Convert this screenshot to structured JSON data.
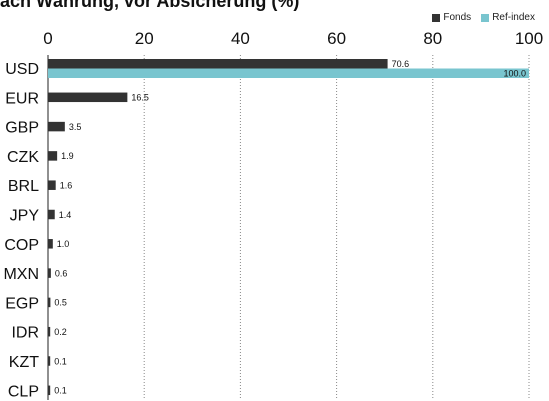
{
  "chart_data": {
    "type": "bar",
    "orientation": "horizontal",
    "title": "ach Währung, vor Absicherung (%)",
    "categories": [
      "USD",
      "EUR",
      "GBP",
      "CZK",
      "BRL",
      "JPY",
      "COP",
      "MXN",
      "EGP",
      "IDR",
      "KZT",
      "CLP"
    ],
    "series": [
      {
        "name": "Fonds",
        "color": "#333333",
        "values": [
          70.6,
          16.5,
          3.5,
          1.9,
          1.6,
          1.4,
          1.0,
          0.6,
          0.5,
          0.2,
          0.1,
          0.1
        ]
      },
      {
        "name": "Ref-index",
        "color": "#79c5cf",
        "values": [
          100.0,
          null,
          null,
          null,
          null,
          null,
          null,
          null,
          null,
          null,
          null,
          null
        ]
      }
    ],
    "value_axis": {
      "ticks": [
        "0",
        "20",
        "40",
        "60",
        "80",
        "100"
      ],
      "range": [
        0,
        100
      ],
      "position": "top"
    },
    "grid": "vertical dotted",
    "legend_position": "top-right"
  }
}
